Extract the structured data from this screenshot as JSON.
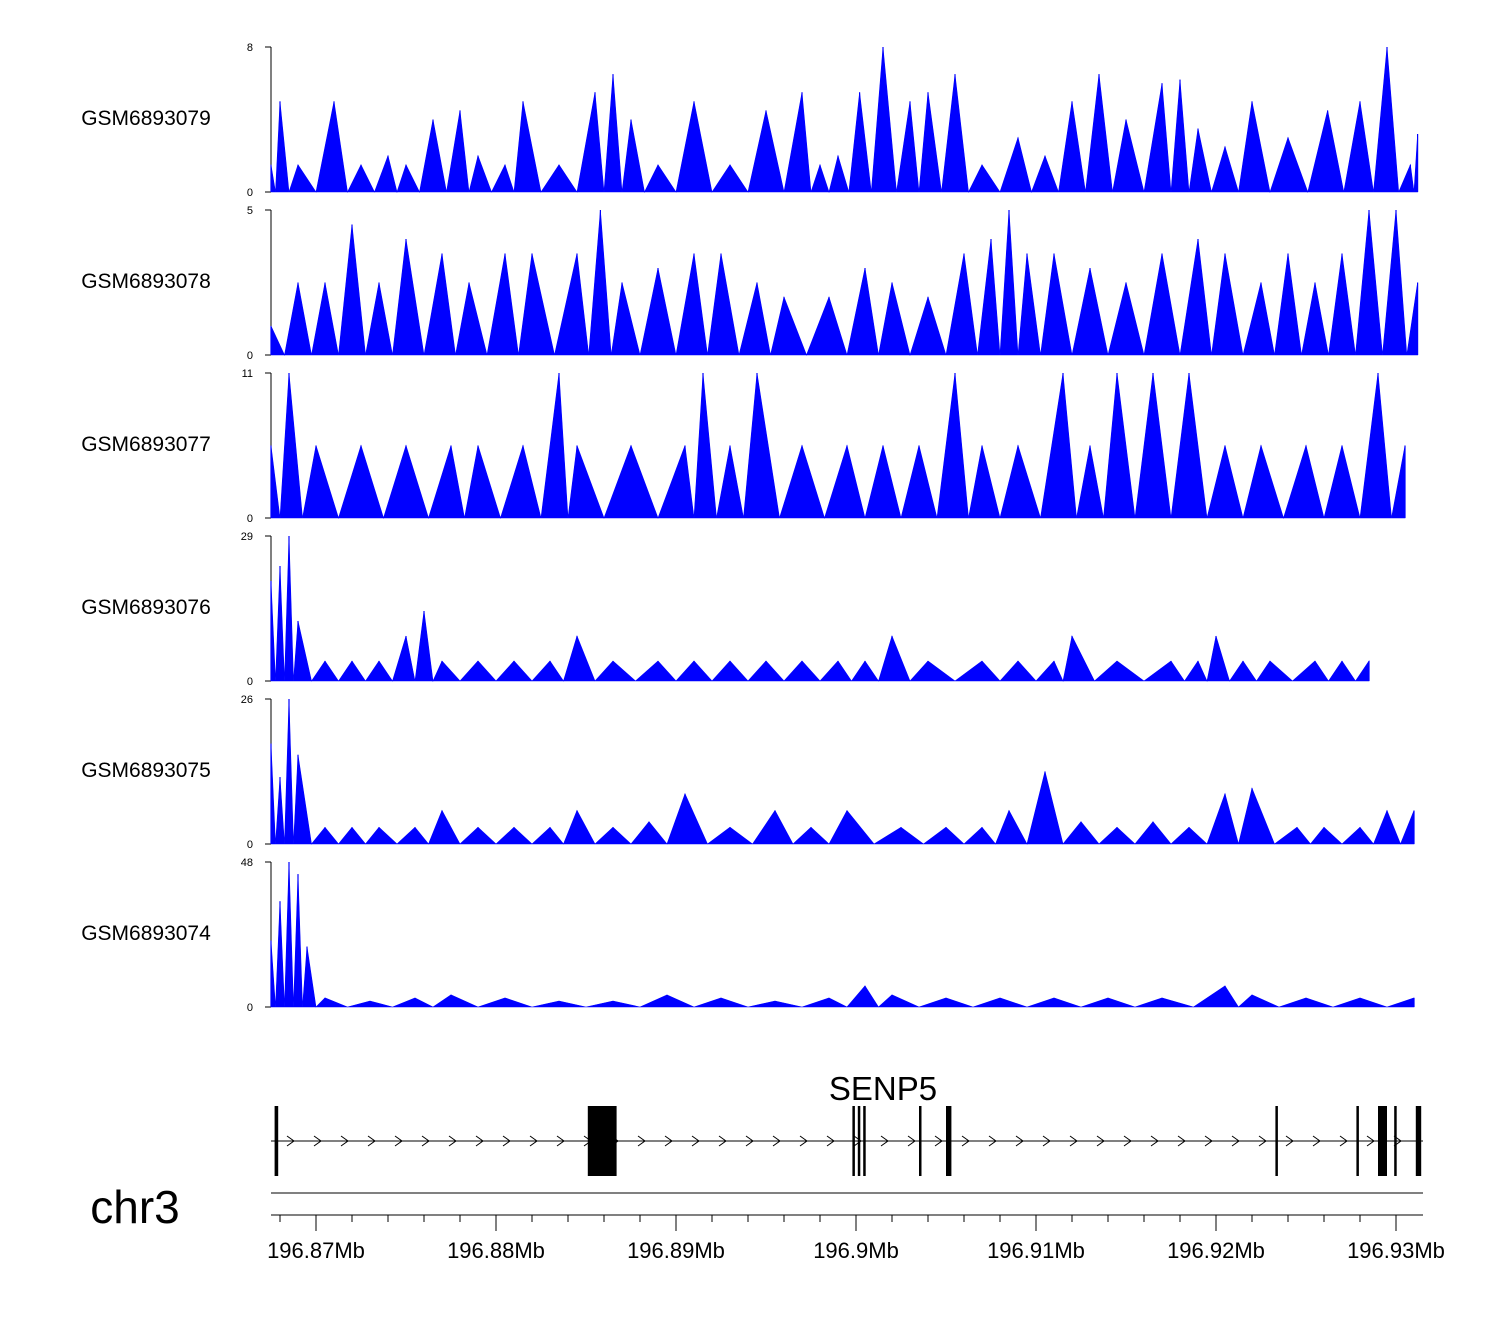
{
  "chart_data": {
    "type": "area",
    "title": "",
    "chromosome": "chr3",
    "color": "#0000ff",
    "x_unit": "Mb",
    "x_range": [
      196.8675,
      196.9315
    ],
    "x_ticks": [
      196.87,
      196.88,
      196.89,
      196.9,
      196.91,
      196.92,
      196.93
    ],
    "x_tick_labels": [
      "196.87Mb",
      "196.88Mb",
      "196.89Mb",
      "196.9Mb",
      "196.91Mb",
      "196.92Mb",
      "196.93Mb"
    ],
    "tracks": [
      {
        "name": "GSM6893079",
        "ymax": 8,
        "ymin_label": "0",
        "ymax_label": "8",
        "points": [
          [
            196.8675,
            1.5
          ],
          [
            196.868,
            5
          ],
          [
            196.869,
            1.5
          ],
          [
            196.871,
            5
          ],
          [
            196.8725,
            1.5
          ],
          [
            196.874,
            2
          ],
          [
            196.875,
            1.5
          ],
          [
            196.8765,
            4
          ],
          [
            196.878,
            4.5
          ],
          [
            196.879,
            2
          ],
          [
            196.8805,
            1.5
          ],
          [
            196.8815,
            5
          ],
          [
            196.8835,
            1.5
          ],
          [
            196.8855,
            5.5
          ],
          [
            196.8865,
            6.5
          ],
          [
            196.8875,
            4
          ],
          [
            196.889,
            1.5
          ],
          [
            196.891,
            5
          ],
          [
            196.893,
            1.5
          ],
          [
            196.895,
            4.5
          ],
          [
            196.897,
            5.5
          ],
          [
            196.898,
            1.5
          ],
          [
            196.899,
            2
          ],
          [
            196.9002,
            5.5
          ],
          [
            196.9015,
            8
          ],
          [
            196.903,
            5
          ],
          [
            196.904,
            5.5
          ],
          [
            196.9055,
            6.5
          ],
          [
            196.907,
            1.5
          ],
          [
            196.909,
            3
          ],
          [
            196.9105,
            2
          ],
          [
            196.912,
            5
          ],
          [
            196.9135,
            6.5
          ],
          [
            196.915,
            4
          ],
          [
            196.917,
            6
          ],
          [
            196.918,
            6.2
          ],
          [
            196.919,
            3.5
          ],
          [
            196.9205,
            2.5
          ],
          [
            196.922,
            5
          ],
          [
            196.924,
            3
          ],
          [
            196.9262,
            4.5
          ],
          [
            196.928,
            5
          ],
          [
            196.9295,
            8
          ],
          [
            196.9308,
            1.5
          ],
          [
            196.9312,
            3.2
          ]
        ]
      },
      {
        "name": "GSM6893078",
        "ymax": 5,
        "ymin_label": "0",
        "ymax_label": "5",
        "points": [
          [
            196.8675,
            1
          ],
          [
            196.869,
            2.5
          ],
          [
            196.8705,
            2.5
          ],
          [
            196.872,
            4.5
          ],
          [
            196.8735,
            2.5
          ],
          [
            196.875,
            4
          ],
          [
            196.877,
            3.5
          ],
          [
            196.8785,
            2.5
          ],
          [
            196.8805,
            3.5
          ],
          [
            196.882,
            3.5
          ],
          [
            196.8845,
            3.5
          ],
          [
            196.8858,
            5
          ],
          [
            196.887,
            2.5
          ],
          [
            196.889,
            3
          ],
          [
            196.891,
            3.5
          ],
          [
            196.8925,
            3.5
          ],
          [
            196.8945,
            2.5
          ],
          [
            196.896,
            2
          ],
          [
            196.8985,
            2
          ],
          [
            196.9005,
            3
          ],
          [
            196.902,
            2.5
          ],
          [
            196.904,
            2
          ],
          [
            196.906,
            3.5
          ],
          [
            196.9075,
            4
          ],
          [
            196.9085,
            5
          ],
          [
            196.9095,
            3.5
          ],
          [
            196.911,
            3.5
          ],
          [
            196.913,
            3
          ],
          [
            196.915,
            2.5
          ],
          [
            196.917,
            3.5
          ],
          [
            196.919,
            4
          ],
          [
            196.9205,
            3.5
          ],
          [
            196.9225,
            2.5
          ],
          [
            196.924,
            3.5
          ],
          [
            196.9255,
            2.5
          ],
          [
            196.927,
            3.5
          ],
          [
            196.9285,
            5
          ],
          [
            196.93,
            5
          ],
          [
            196.9312,
            2.5
          ]
        ]
      },
      {
        "name": "GSM6893077",
        "ymax": 11,
        "ymin_label": "0",
        "ymax_label": "11",
        "points": [
          [
            196.8675,
            5.5
          ],
          [
            196.8685,
            11
          ],
          [
            196.87,
            5.5
          ],
          [
            196.8725,
            5.5
          ],
          [
            196.875,
            5.5
          ],
          [
            196.8775,
            5.5
          ],
          [
            196.879,
            5.5
          ],
          [
            196.8815,
            5.5
          ],
          [
            196.8835,
            11
          ],
          [
            196.8845,
            5.5
          ],
          [
            196.8875,
            5.5
          ],
          [
            196.8905,
            5.5
          ],
          [
            196.8915,
            11
          ],
          [
            196.893,
            5.5
          ],
          [
            196.8945,
            11
          ],
          [
            196.897,
            5.5
          ],
          [
            196.8995,
            5.5
          ],
          [
            196.9015,
            5.5
          ],
          [
            196.9035,
            5.5
          ],
          [
            196.9055,
            11
          ],
          [
            196.907,
            5.5
          ],
          [
            196.909,
            5.5
          ],
          [
            196.9115,
            11
          ],
          [
            196.913,
            5.5
          ],
          [
            196.9145,
            11
          ],
          [
            196.9165,
            11
          ],
          [
            196.9185,
            11
          ],
          [
            196.9205,
            5.5
          ],
          [
            196.9225,
            5.5
          ],
          [
            196.925,
            5.5
          ],
          [
            196.927,
            5.5
          ],
          [
            196.929,
            11
          ],
          [
            196.9305,
            5.5
          ]
        ]
      },
      {
        "name": "GSM6893076",
        "ymax": 29,
        "ymin_label": "0",
        "ymax_label": "29",
        "points": [
          [
            196.8675,
            20
          ],
          [
            196.868,
            23
          ],
          [
            196.8685,
            29
          ],
          [
            196.869,
            12
          ],
          [
            196.8705,
            4
          ],
          [
            196.872,
            4
          ],
          [
            196.8735,
            4
          ],
          [
            196.875,
            9
          ],
          [
            196.876,
            14
          ],
          [
            196.877,
            4
          ],
          [
            196.879,
            4
          ],
          [
            196.881,
            4
          ],
          [
            196.883,
            4
          ],
          [
            196.8845,
            9
          ],
          [
            196.8865,
            4
          ],
          [
            196.889,
            4
          ],
          [
            196.891,
            4
          ],
          [
            196.893,
            4
          ],
          [
            196.895,
            4
          ],
          [
            196.897,
            4
          ],
          [
            196.899,
            4
          ],
          [
            196.9005,
            4
          ],
          [
            196.902,
            9
          ],
          [
            196.904,
            4
          ],
          [
            196.907,
            4
          ],
          [
            196.909,
            4
          ],
          [
            196.911,
            4
          ],
          [
            196.912,
            9
          ],
          [
            196.9145,
            4
          ],
          [
            196.9175,
            4
          ],
          [
            196.919,
            4
          ],
          [
            196.92,
            9
          ],
          [
            196.9215,
            4
          ],
          [
            196.923,
            4
          ],
          [
            196.9255,
            4
          ],
          [
            196.927,
            4
          ],
          [
            196.9285,
            4
          ]
        ]
      },
      {
        "name": "GSM6893075",
        "ymax": 26,
        "ymin_label": "0",
        "ymax_label": "26",
        "points": [
          [
            196.8675,
            18
          ],
          [
            196.868,
            12
          ],
          [
            196.8685,
            26
          ],
          [
            196.869,
            16
          ],
          [
            196.8705,
            3
          ],
          [
            196.872,
            3
          ],
          [
            196.8735,
            3
          ],
          [
            196.8755,
            3
          ],
          [
            196.877,
            6
          ],
          [
            196.879,
            3
          ],
          [
            196.881,
            3
          ],
          [
            196.883,
            3
          ],
          [
            196.8845,
            6
          ],
          [
            196.8865,
            3
          ],
          [
            196.8885,
            4
          ],
          [
            196.8905,
            9
          ],
          [
            196.893,
            3
          ],
          [
            196.8955,
            6
          ],
          [
            196.8975,
            3
          ],
          [
            196.8995,
            6
          ],
          [
            196.9025,
            3
          ],
          [
            196.905,
            3
          ],
          [
            196.907,
            3
          ],
          [
            196.9085,
            6
          ],
          [
            196.9105,
            13
          ],
          [
            196.9125,
            4
          ],
          [
            196.9145,
            3
          ],
          [
            196.9165,
            4
          ],
          [
            196.9185,
            3
          ],
          [
            196.9205,
            9
          ],
          [
            196.922,
            10
          ],
          [
            196.9245,
            3
          ],
          [
            196.926,
            3
          ],
          [
            196.928,
            3
          ],
          [
            196.9295,
            6
          ],
          [
            196.931,
            6
          ]
        ]
      },
      {
        "name": "GSM6893074",
        "ymax": 48,
        "ymin_label": "0",
        "ymax_label": "48",
        "points": [
          [
            196.8675,
            22
          ],
          [
            196.868,
            35
          ],
          [
            196.8685,
            48
          ],
          [
            196.869,
            44
          ],
          [
            196.8695,
            20
          ],
          [
            196.8705,
            3
          ],
          [
            196.873,
            2
          ],
          [
            196.8755,
            3
          ],
          [
            196.8775,
            4
          ],
          [
            196.8805,
            3
          ],
          [
            196.8835,
            2
          ],
          [
            196.8865,
            2
          ],
          [
            196.8895,
            4
          ],
          [
            196.8925,
            3
          ],
          [
            196.8955,
            2
          ],
          [
            196.8985,
            3
          ],
          [
            196.9005,
            7
          ],
          [
            196.902,
            4
          ],
          [
            196.905,
            3
          ],
          [
            196.908,
            3
          ],
          [
            196.911,
            3
          ],
          [
            196.914,
            3
          ],
          [
            196.917,
            3
          ],
          [
            196.9205,
            7
          ],
          [
            196.922,
            4
          ],
          [
            196.925,
            3
          ],
          [
            196.928,
            3
          ],
          [
            196.931,
            3
          ]
        ]
      }
    ],
    "gene": {
      "name": "SENP5",
      "strand": "+",
      "start": 196.8675,
      "end": 196.9315,
      "exons": [
        [
          196.8677,
          196.8679
        ],
        [
          196.8851,
          196.8867
        ],
        [
          196.8998,
          196.8999
        ],
        [
          196.9001,
          196.9002
        ],
        [
          196.9004,
          196.9005
        ],
        [
          196.9035,
          196.9036
        ],
        [
          196.905,
          196.9053
        ],
        [
          196.9233,
          196.9234
        ],
        [
          196.9278,
          196.9279
        ],
        [
          196.929,
          196.9295
        ],
        [
          196.9299,
          196.93
        ],
        [
          196.9311,
          196.9314
        ]
      ]
    }
  }
}
